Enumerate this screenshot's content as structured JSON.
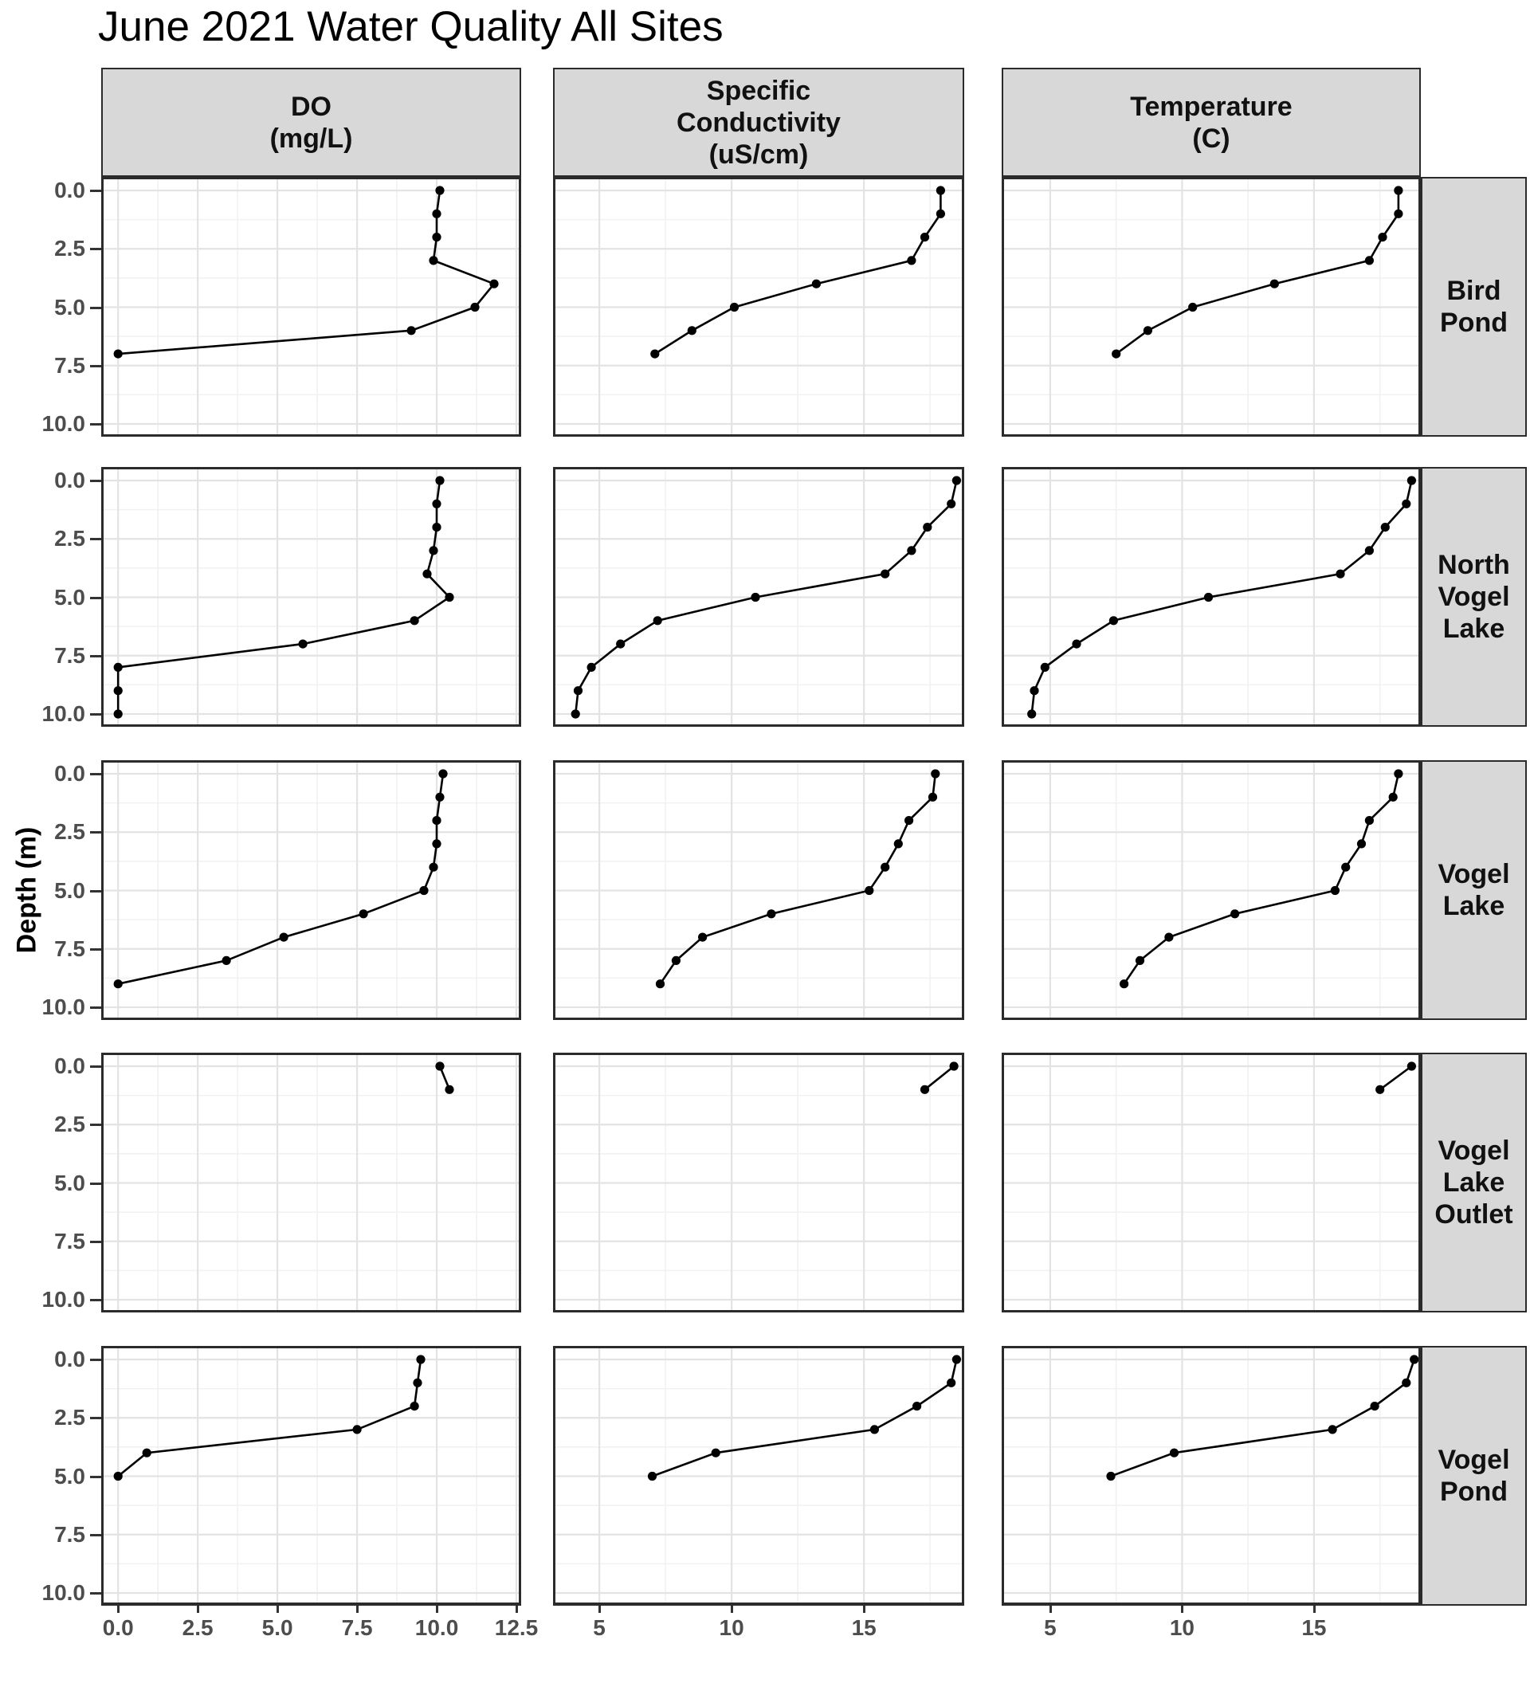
{
  "chart_data": {
    "type": "line",
    "title": "June 2021 Water Quality All Sites",
    "y_axis_title": "Depth (m)",
    "legend": "none",
    "grid": "major+minor",
    "colors": {
      "point": "#000000",
      "line": "#000000",
      "strip_background": "#d8d8d8",
      "panel_border": "#2b2b2b",
      "grid_major": "#e3e3e3",
      "grid_minor": "#f1f1f1",
      "axis_text": "#4d4d4d",
      "strip_text": "#111111"
    },
    "depth_axis": {
      "ticks": [
        0,
        2.5,
        5,
        7.5,
        10
      ],
      "tick_labels": [
        "0.0",
        "2.5",
        "5.0",
        "7.5",
        "10.0"
      ],
      "minor_ticks": [
        1.25,
        3.75,
        6.25,
        8.75
      ],
      "domain": [
        -0.58,
        10.55
      ]
    },
    "columns": [
      {
        "id": "do",
        "label": "DO\n(mg/L)",
        "ticks": [
          0,
          2.5,
          5,
          7.5,
          10,
          12.5
        ],
        "tick_labels": [
          "0.0",
          "2.5",
          "5.0",
          "7.5",
          "10.0",
          "12.5"
        ],
        "minor_ticks": [
          1.25,
          3.75,
          6.25,
          8.75,
          11.25
        ],
        "domain": [
          -0.53,
          12.65
        ]
      },
      {
        "id": "spcond",
        "label": "Specific\nConductivity\n(uS/cm)",
        "ticks": [
          5,
          10,
          15
        ],
        "tick_labels": [
          "5",
          "10",
          "15"
        ],
        "minor_ticks": [
          7.5,
          12.5,
          17.5
        ],
        "domain": [
          3.25,
          18.79
        ]
      },
      {
        "id": "temp",
        "label": "Temperature\n(C)",
        "ticks": [
          5,
          10,
          15
        ],
        "tick_labels": [
          "5",
          "10",
          "15"
        ],
        "minor_ticks": [
          7.5,
          12.5,
          17.5
        ],
        "domain": [
          3.16,
          19.05
        ]
      }
    ],
    "sites": [
      {
        "label": "Bird\nPond",
        "depths": [
          0,
          1,
          2,
          3,
          4,
          5,
          6,
          7
        ],
        "do": [
          10.1,
          10.0,
          10.0,
          9.9,
          11.8,
          11.2,
          9.2,
          0.0
        ],
        "spcond": [
          17.9,
          17.9,
          17.3,
          16.8,
          13.2,
          10.1,
          8.5,
          7.1
        ],
        "temp": [
          18.2,
          18.2,
          17.6,
          17.1,
          13.5,
          10.4,
          8.7,
          7.5
        ]
      },
      {
        "label": "North\nVogel\nLake",
        "depths": [
          0,
          1,
          2,
          3,
          4,
          5,
          6,
          7,
          8,
          9,
          10
        ],
        "do": [
          10.1,
          10.0,
          10.0,
          9.9,
          9.7,
          10.4,
          9.3,
          5.8,
          0.0,
          0.0,
          0.0
        ],
        "spcond": [
          18.5,
          18.3,
          17.4,
          16.8,
          15.8,
          10.9,
          7.2,
          5.8,
          4.7,
          4.2,
          4.1
        ],
        "temp": [
          18.7,
          18.5,
          17.7,
          17.1,
          16.0,
          11.0,
          7.4,
          6.0,
          4.8,
          4.4,
          4.3
        ]
      },
      {
        "label": "Vogel\nLake",
        "depths": [
          0,
          1,
          2,
          3,
          4,
          5,
          6,
          7,
          8,
          9
        ],
        "do": [
          10.2,
          10.1,
          10.0,
          10.0,
          9.9,
          9.6,
          7.7,
          5.2,
          3.4,
          0.0
        ],
        "spcond": [
          17.7,
          17.6,
          16.7,
          16.3,
          15.8,
          15.2,
          11.5,
          8.9,
          7.9,
          7.3
        ],
        "temp": [
          18.2,
          18.0,
          17.1,
          16.8,
          16.2,
          15.8,
          12.0,
          9.5,
          8.4,
          7.8
        ]
      },
      {
        "label": "Vogel\nLake\nOutlet",
        "depths": [
          0,
          1
        ],
        "do": [
          10.1,
          10.4
        ],
        "spcond": [
          18.4,
          17.3
        ],
        "temp": [
          18.7,
          17.5
        ]
      },
      {
        "label": "Vogel\nPond",
        "depths": [
          0,
          1,
          2,
          3,
          4,
          5
        ],
        "do": [
          9.5,
          9.4,
          9.3,
          7.5,
          0.9,
          0.0
        ],
        "spcond": [
          18.5,
          18.3,
          17.0,
          15.4,
          9.4,
          7.0
        ],
        "temp": [
          18.8,
          18.5,
          17.3,
          15.7,
          9.7,
          7.3
        ]
      }
    ]
  }
}
